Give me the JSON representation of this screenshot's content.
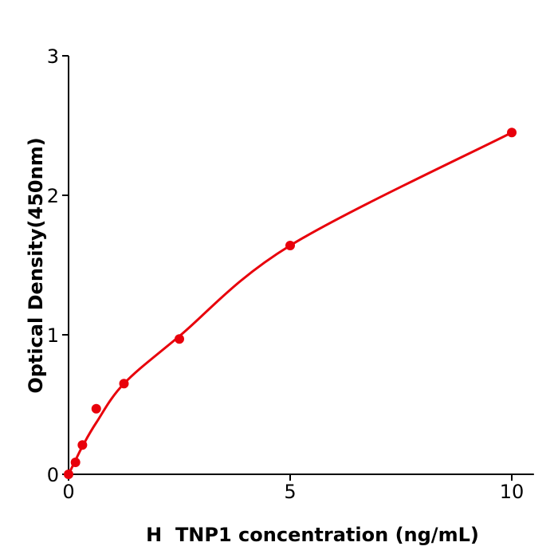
{
  "chart_data": {
    "type": "scatter",
    "title": "",
    "xlabel": "H  TNP1 concentration (ng/mL)",
    "ylabel": "Optical Density(450nm)",
    "xlim": [
      0,
      10.5
    ],
    "ylim": [
      0,
      3
    ],
    "xticks": [
      "0",
      "5",
      "10"
    ],
    "yticks": [
      "0",
      "1",
      "2",
      "3"
    ],
    "grid": false,
    "color": "#e8000b",
    "series": [
      {
        "x": [
          0,
          0.156,
          0.3125,
          0.625,
          1.25,
          2.5,
          5,
          10
        ],
        "y": [
          0.0,
          0.086,
          0.21,
          0.47,
          0.65,
          0.97,
          1.64,
          2.45
        ],
        "fit_curve": true
      }
    ]
  }
}
